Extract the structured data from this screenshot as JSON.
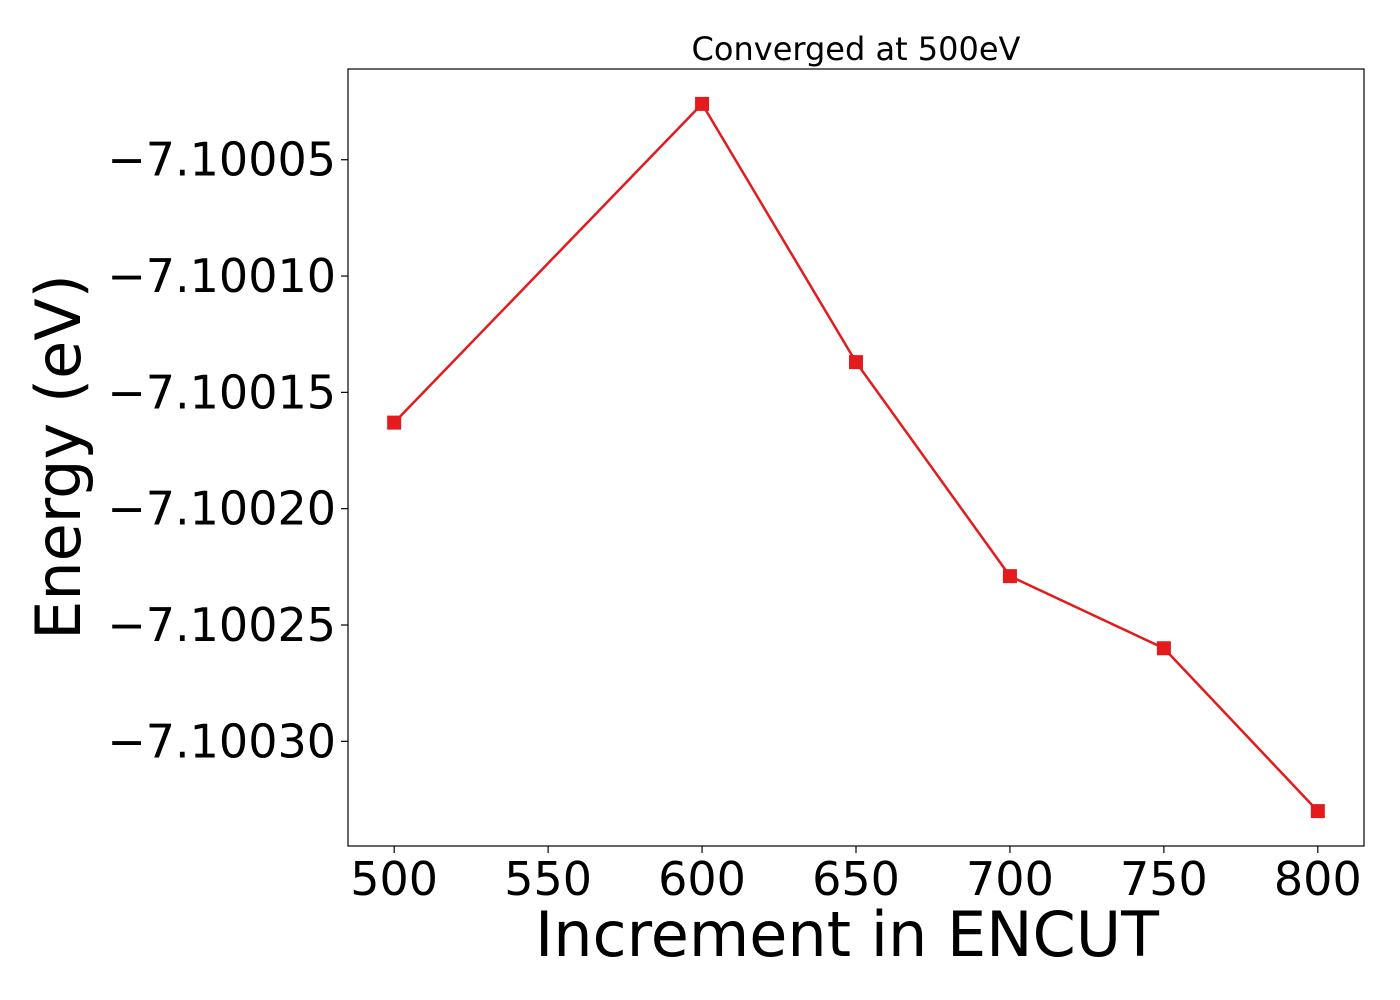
{
  "chart_data": {
    "type": "line",
    "title": "Converged at 500eV",
    "xlabel": "Increment in ENCUT",
    "ylabel": "Energy (eV)",
    "x": [
      500,
      600,
      650,
      700,
      750,
      800
    ],
    "series": [
      {
        "values": [
          -7.100163,
          -7.100026,
          -7.100137,
          -7.100229,
          -7.10026,
          -7.10033
        ],
        "color": "#e41a1c",
        "marker": "square"
      }
    ],
    "xlim": [
      485,
      815
    ],
    "ylim": [
      -7.100345,
      -7.100011
    ],
    "xticks": [
      500,
      550,
      600,
      650,
      700,
      750,
      800
    ],
    "xtick_labels": [
      "500",
      "550",
      "600",
      "650",
      "700",
      "750",
      "800"
    ],
    "yticks": [
      -7.10005,
      -7.1001,
      -7.10015,
      -7.1002,
      -7.10025,
      -7.1003
    ],
    "ytick_labels": [
      "−7.10005",
      "−7.10010",
      "−7.10015",
      "−7.10020",
      "−7.10025",
      "−7.10030"
    ],
    "grid": false,
    "legend": "none"
  }
}
